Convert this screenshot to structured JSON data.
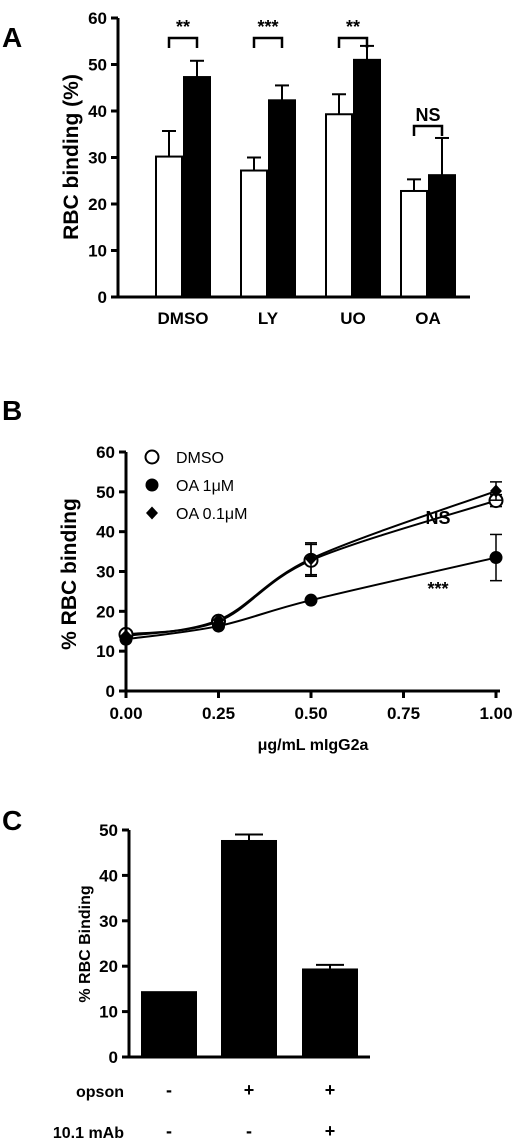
{
  "chart_data": [
    {
      "type": "bar",
      "panel": "A",
      "ylabel": "RBC binding (%)",
      "ylim": [
        0,
        60
      ],
      "yticks": [
        0,
        10,
        20,
        30,
        40,
        50,
        60
      ],
      "categories": [
        "DMSO",
        "LY",
        "UO",
        "OA"
      ],
      "series": [
        {
          "color": "#ffffff",
          "values": [
            30.2,
            27.2,
            39.3,
            22.8
          ],
          "errors": [
            5.5,
            2.8,
            4.3,
            2.5
          ]
        },
        {
          "color": "#000000",
          "values": [
            47.3,
            42.3,
            51.0,
            26.2
          ],
          "errors": [
            3.5,
            3.2,
            3.0,
            8.0
          ]
        }
      ],
      "significance": [
        "**",
        "***",
        "**",
        "NS"
      ]
    },
    {
      "type": "scatter",
      "panel": "B",
      "xlabel": "μg/mL mIgG2a",
      "ylabel": "% RBC binding",
      "xlim": [
        0,
        1
      ],
      "ylim": [
        0,
        60
      ],
      "xticks": [
        "0.00",
        "0.25",
        "0.50",
        "0.75",
        "1.00"
      ],
      "yticks": [
        0,
        10,
        20,
        30,
        40,
        50,
        60
      ],
      "legend_position": "top-left",
      "series": [
        {
          "name": "DMSO",
          "marker": "open-circle",
          "x": [
            0,
            0.25,
            0.5,
            1.0
          ],
          "y": [
            14.2,
            17.5,
            32.8,
            47.8
          ],
          "errors": [
            0.5,
            0.8,
            4.0,
            1.5
          ]
        },
        {
          "name": "OA 1μM",
          "marker": "filled-circle",
          "x": [
            0,
            0.25,
            0.5,
            1.0
          ],
          "y": [
            13.0,
            16.3,
            22.8,
            33.5
          ],
          "errors": [
            0.5,
            0.5,
            0.5,
            5.8
          ]
        },
        {
          "name": "OA 0.1μM",
          "marker": "filled-diamond",
          "x": [
            0,
            0.25,
            0.5,
            1.0
          ],
          "y": [
            13.8,
            17.8,
            33.2,
            50.2
          ],
          "errors": [
            0.5,
            0.8,
            4.0,
            2.3
          ]
        }
      ],
      "annotations": [
        "NS",
        "***"
      ]
    },
    {
      "type": "bar",
      "panel": "C",
      "ylabel": "% RBC Binding",
      "ylim": [
        0,
        50
      ],
      "yticks": [
        0,
        10,
        20,
        30,
        40,
        50
      ],
      "values": [
        14.5,
        47.8,
        19.5
      ],
      "errors": [
        0,
        1.2,
        0.8
      ],
      "rows": [
        {
          "label": "opson",
          "signs": [
            "-",
            "+",
            "+"
          ]
        },
        {
          "label": "10.1 mAb",
          "signs": [
            "-",
            "-",
            "+"
          ]
        }
      ]
    }
  ]
}
